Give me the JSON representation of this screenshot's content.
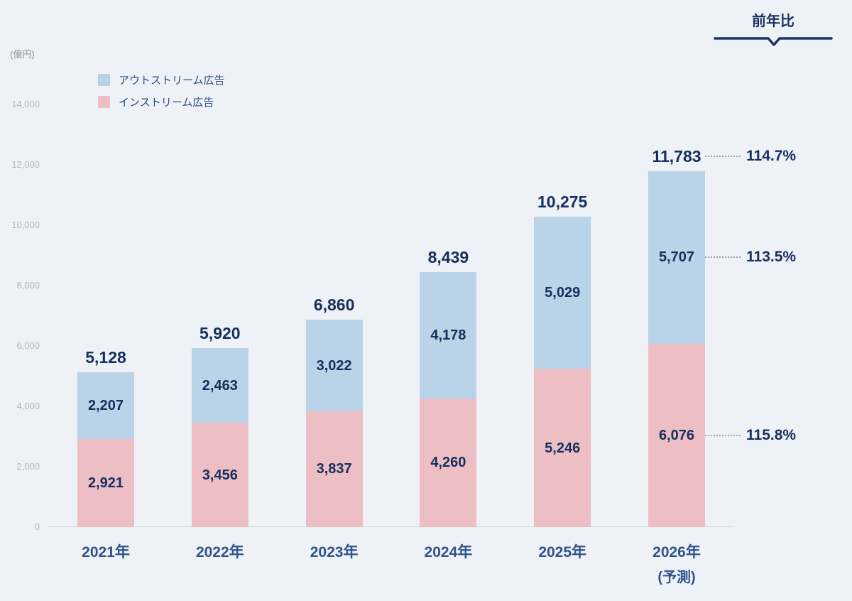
{
  "chart_data": {
    "type": "bar",
    "stacked": true,
    "unit_label": "(億円)",
    "categories": [
      "2021年",
      "2022年",
      "2023年",
      "2024年",
      "2025年",
      "2026年"
    ],
    "category_note": {
      "index": 5,
      "label": "(予測)"
    },
    "series": [
      {
        "name": "インストリーム広告",
        "key": "instream",
        "color": "#edbfc5",
        "values": [
          2921,
          3456,
          3837,
          4260,
          5246,
          6076
        ]
      },
      {
        "name": "アウトストリーム広告",
        "key": "outstream",
        "color": "#b9d3e8",
        "values": [
          2207,
          2463,
          3022,
          4178,
          5029,
          5707
        ]
      }
    ],
    "totals": [
      5128,
      5920,
      6860,
      8439,
      10275,
      11783
    ],
    "y_axis": {
      "min": 0,
      "max": 14000,
      "tick_step": 2000,
      "tick_labels": [
        "0",
        "2,000",
        "4,000",
        "6,000",
        "8,000",
        "10,000",
        "12,000",
        "14,000"
      ]
    },
    "grid": "off",
    "legend_position": "top-left",
    "yoy": {
      "header": "前年比",
      "items": [
        {
          "value": "114.7%",
          "attach": "total"
        },
        {
          "value": "113.5%",
          "attach": "outstream"
        },
        {
          "value": "115.8%",
          "attach": "instream"
        }
      ]
    },
    "legend": [
      {
        "label": "アウトストリーム広告",
        "color": "#b9d3e8"
      },
      {
        "label": "インストリーム広告",
        "color": "#edbfc5"
      }
    ]
  },
  "colors": {
    "background": "#eef1f6",
    "value_text": "#152f5e",
    "axis_text": "#aeb5c0",
    "category_text": "#2e538b",
    "accent_navy": "#1b3260"
  }
}
